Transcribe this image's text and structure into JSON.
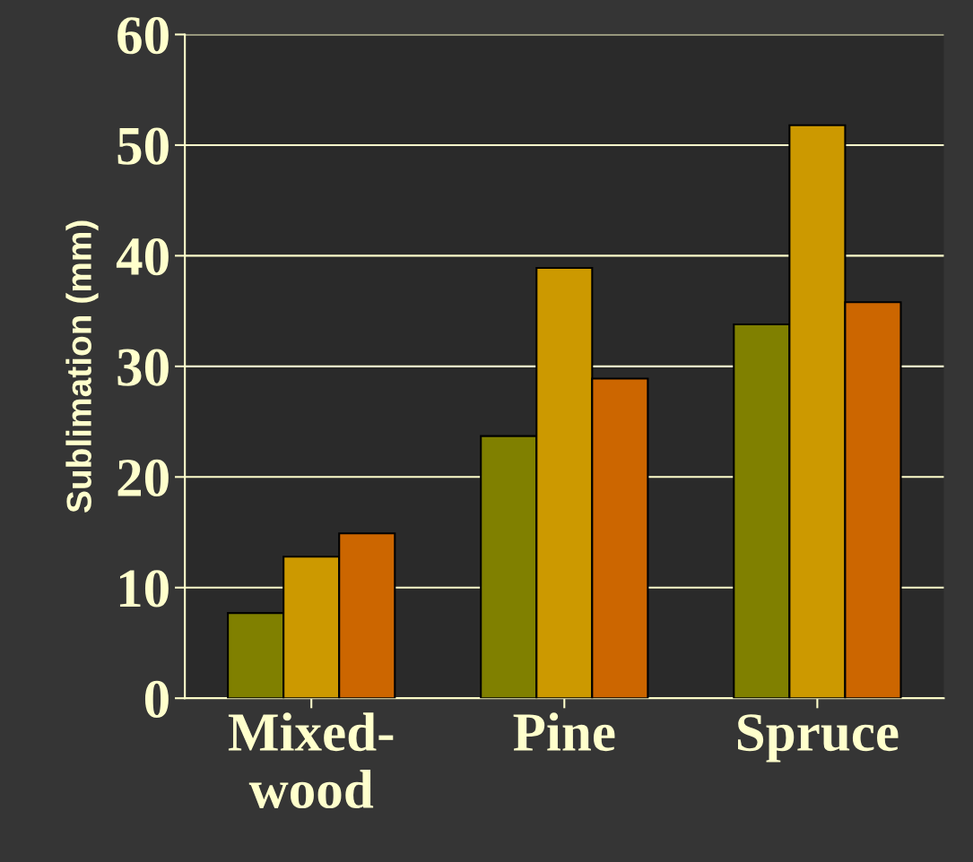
{
  "chart_data": {
    "type": "bar",
    "ylabel": "Sublimation (mm)",
    "categories": [
      "Mixed-\nwood",
      "Pine",
      "Spruce"
    ],
    "series": [
      {
        "color": "#808000",
        "values": [
          7.7,
          23.7,
          33.8
        ]
      },
      {
        "color": "#cc9900",
        "values": [
          12.8,
          38.9,
          51.8
        ]
      },
      {
        "color": "#cc6600",
        "values": [
          14.9,
          28.9,
          35.8
        ]
      }
    ],
    "ylim": [
      0,
      60
    ],
    "yticks": [
      0,
      10,
      20,
      30,
      40,
      50,
      60
    ],
    "grid": "y",
    "legend": false
  }
}
